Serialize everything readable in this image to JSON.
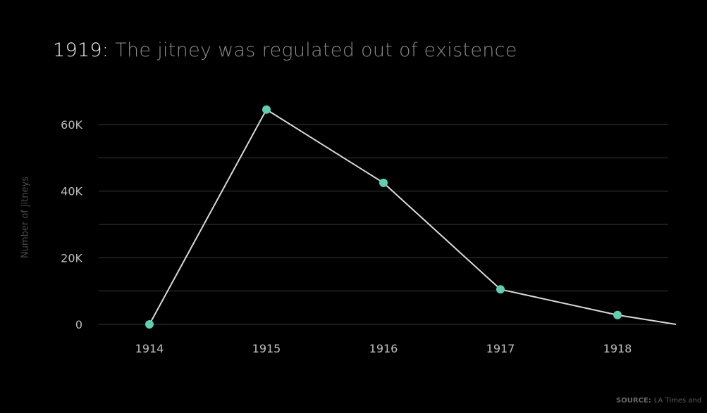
{
  "title": {
    "year": "1919:",
    "text": " The jitney was regulated out of existence"
  },
  "source": {
    "label": "SOURCE:",
    "text": "LA Times and"
  },
  "colors": {
    "background": "#000000",
    "line": "#d9d9d9",
    "marker": "#5ecfb1",
    "grid": "#3a3a3a",
    "tick_text": "#bdbdbd"
  },
  "chart_data": {
    "type": "line",
    "categories": [
      "1914",
      "1915",
      "1916",
      "1917",
      "1918"
    ],
    "x": [
      1914,
      1915,
      1916,
      1917,
      1918,
      1918.5
    ],
    "y": [
      0,
      64500,
      42500,
      10500,
      2800,
      0
    ],
    "markers_on": [
      true,
      true,
      true,
      true,
      true,
      false
    ],
    "ylabel": "Number of jitneys",
    "xlabel": "",
    "ylim": [
      0,
      60000
    ],
    "yticks": [
      0,
      20000,
      40000,
      60000
    ],
    "ytick_labels": [
      "0",
      "20K",
      "40K",
      "60K"
    ],
    "grid": true,
    "legend": "none"
  }
}
